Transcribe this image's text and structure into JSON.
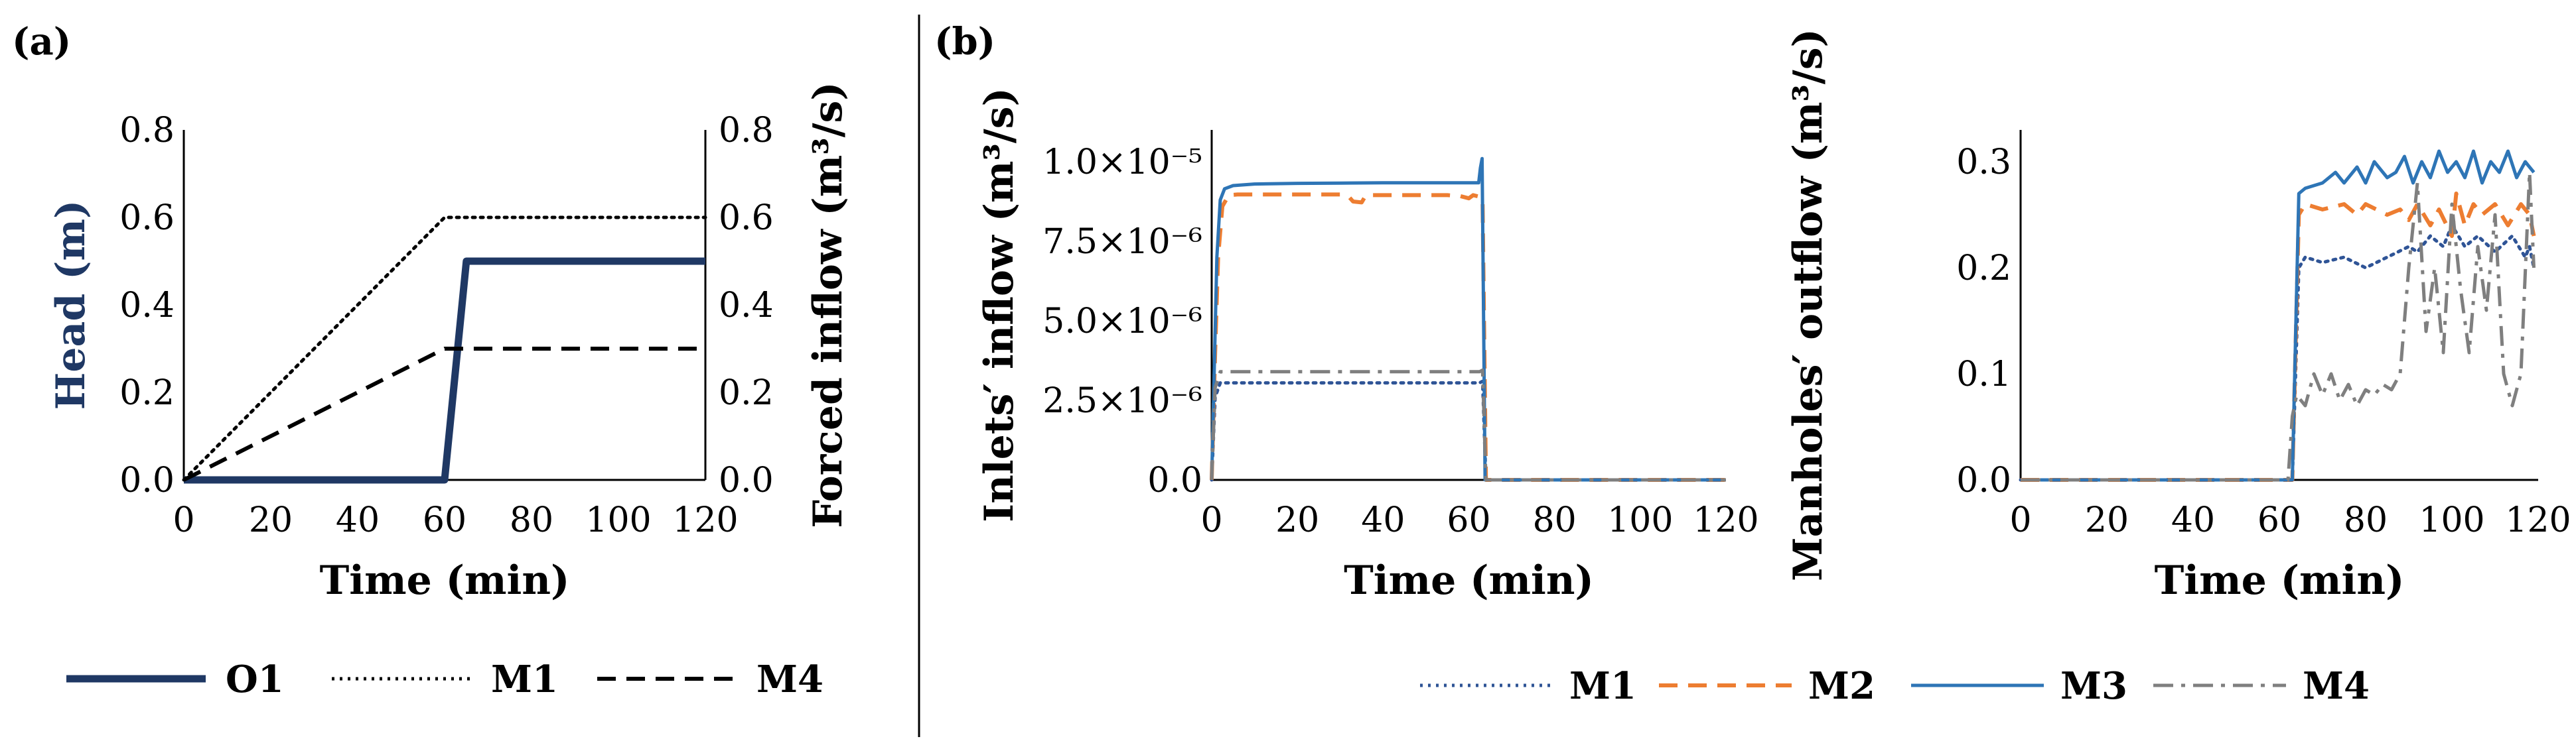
{
  "panels": {
    "a_label": "(a)",
    "b_label": "(b)"
  },
  "colors": {
    "O1": "#1F3864",
    "M1_a": "#000000",
    "M4_a": "#000000",
    "M1_b": "#2F5496",
    "M2_b": "#ED7D31",
    "M3_b": "#2E75B6",
    "M4_b": "#7F7F7F",
    "axis": "#000000"
  },
  "chart_data": [
    {
      "id": "a",
      "type": "line",
      "xlabel": "Time (min)",
      "ylabel": "Head (m)",
      "ylabel2": "Forced inflow (m³/s)",
      "xlim": [
        0,
        120
      ],
      "ylim": [
        0,
        0.8
      ],
      "ylim2": [
        0,
        0.8
      ],
      "xticks": [
        "0",
        "20",
        "40",
        "60",
        "80",
        "100",
        "120"
      ],
      "yticks": [
        "0.0",
        "0.2",
        "0.4",
        "0.6",
        "0.8"
      ],
      "yticks2": [
        "0.0",
        "0.2",
        "0.4",
        "0.6",
        "0.8"
      ],
      "series": [
        {
          "name": "O1",
          "axis": "left",
          "style": "solid-thick",
          "x": [
            0,
            60,
            65,
            120
          ],
          "y": [
            0,
            0,
            0.5,
            0.5
          ]
        },
        {
          "name": "M1",
          "axis": "right",
          "style": "dotted",
          "x": [
            0,
            60,
            120
          ],
          "y": [
            0,
            0.6,
            0.6
          ]
        },
        {
          "name": "M4",
          "axis": "right",
          "style": "dashed",
          "x": [
            0,
            60,
            120
          ],
          "y": [
            0,
            0.3,
            0.3
          ]
        }
      ],
      "legend": [
        "O1",
        "M1",
        "M4"
      ]
    },
    {
      "id": "b1",
      "type": "line",
      "xlabel": "Time (min)",
      "ylabel": "Inlets′ inflow (m³/s)",
      "xlim": [
        0,
        120
      ],
      "ylim": [
        0,
        1.1e-05
      ],
      "xticks": [
        "0",
        "20",
        "40",
        "60",
        "80",
        "100",
        "120"
      ],
      "yticks": [
        "0.0",
        "2.5×10⁻⁶",
        "5.0×10⁻⁶",
        "7.5×10⁻⁶",
        "1.0×10⁻⁵"
      ],
      "ytick_values": [
        0,
        2.5e-06,
        5e-06,
        7.5e-06,
        1e-05
      ],
      "series": [
        {
          "name": "M1",
          "style": "dotted",
          "x": [
            0,
            0.8,
            2,
            62.5,
            63.2,
            64,
            120
          ],
          "y": [
            0,
            2.6e-06,
            3.05e-06,
            3.05e-06,
            3.1e-06,
            0,
            0
          ]
        },
        {
          "name": "M2",
          "style": "dashed",
          "x": [
            0,
            0.8,
            1.5,
            2.5,
            4,
            6,
            10,
            20,
            30,
            32,
            33,
            35,
            36,
            50,
            55,
            58,
            60,
            61,
            62.5,
            63.2,
            64,
            120
          ],
          "y": [
            0,
            4e-06,
            7e-06,
            8.6e-06,
            8.95e-06,
            8.97e-06,
            8.97e-06,
            8.97e-06,
            8.97e-06,
            8.9e-06,
            8.75e-06,
            8.72e-06,
            8.95e-06,
            8.95e-06,
            8.95e-06,
            8.92e-06,
            8.85e-06,
            8.95e-06,
            8.9e-06,
            8.8e-06,
            0,
            0
          ]
        },
        {
          "name": "M3",
          "style": "solid",
          "x": [
            0,
            0.6,
            1.2,
            2,
            3,
            5,
            10,
            20,
            30,
            40,
            50,
            60,
            62.3,
            62.7,
            63.1,
            63.8,
            120
          ],
          "y": [
            0,
            3.5e-06,
            7e-06,
            8.8e-06,
            9.15e-06,
            9.25e-06,
            9.3e-06,
            9.32e-06,
            9.33e-06,
            9.34e-06,
            9.34e-06,
            9.34e-06,
            9.34e-06,
            9.8e-06,
            1.01e-05,
            0,
            0
          ]
        },
        {
          "name": "M4",
          "style": "dashdot",
          "x": [
            0,
            0.8,
            2,
            62.5,
            63.2,
            64,
            120
          ],
          "y": [
            0,
            2.9e-06,
            3.4e-06,
            3.4e-06,
            3.45e-06,
            0,
            0
          ]
        }
      ]
    },
    {
      "id": "b2",
      "type": "line",
      "xlabel": "Time (min)",
      "ylabel": "Manholes′ outflow (m³/s)",
      "xlim": [
        0,
        120
      ],
      "ylim": [
        0,
        0.33
      ],
      "xticks": [
        "0",
        "20",
        "40",
        "60",
        "80",
        "100",
        "120"
      ],
      "yticks": [
        "0.0",
        "0.1",
        "0.2",
        "0.3"
      ],
      "ytick_values": [
        0,
        0.1,
        0.2,
        0.3
      ],
      "series": [
        {
          "name": "M1",
          "style": "dotted",
          "x": [
            0,
            63,
            64.5,
            66,
            70,
            75,
            80,
            85,
            90,
            92,
            95,
            98,
            100,
            103,
            106,
            110,
            114,
            117,
            118,
            119
          ],
          "y": [
            0,
            0,
            0.2,
            0.21,
            0.205,
            0.21,
            0.2,
            0.21,
            0.22,
            0.215,
            0.23,
            0.22,
            0.24,
            0.22,
            0.23,
            0.215,
            0.23,
            0.21,
            0.22,
            0.2
          ]
        },
        {
          "name": "M2",
          "style": "dashed",
          "x": [
            0,
            63,
            64.5,
            66,
            70,
            75,
            78,
            80,
            85,
            88,
            90,
            92,
            95,
            97,
            100,
            101,
            103,
            105,
            107,
            110,
            113,
            116,
            118,
            119
          ],
          "y": [
            0,
            0,
            0.25,
            0.26,
            0.255,
            0.26,
            0.25,
            0.26,
            0.25,
            0.255,
            0.245,
            0.26,
            0.24,
            0.255,
            0.23,
            0.27,
            0.24,
            0.26,
            0.25,
            0.26,
            0.24,
            0.26,
            0.25,
            0.23
          ]
        },
        {
          "name": "M3",
          "style": "solid",
          "x": [
            0,
            63,
            64.5,
            66,
            70,
            73,
            75,
            78,
            80,
            82,
            85,
            87,
            89,
            91,
            93,
            95,
            97,
            99,
            101,
            103,
            105,
            107,
            109,
            111,
            113,
            115,
            117,
            119
          ],
          "y": [
            0,
            0,
            0.27,
            0.275,
            0.28,
            0.29,
            0.28,
            0.295,
            0.28,
            0.3,
            0.285,
            0.29,
            0.305,
            0.28,
            0.3,
            0.285,
            0.31,
            0.29,
            0.3,
            0.285,
            0.31,
            0.28,
            0.3,
            0.29,
            0.31,
            0.285,
            0.3,
            0.29
          ]
        },
        {
          "name": "M4",
          "style": "dashdot",
          "x": [
            0,
            62,
            63,
            64,
            66,
            68,
            70,
            72,
            74,
            76,
            78,
            80,
            82,
            84,
            86,
            88,
            90,
            92,
            94,
            96,
            98,
            100,
            102,
            104,
            106,
            108,
            110,
            112,
            114,
            116,
            118,
            119
          ],
          "y": [
            0,
            0,
            0.06,
            0.08,
            0.07,
            0.1,
            0.08,
            0.1,
            0.075,
            0.09,
            0.07,
            0.085,
            0.08,
            0.09,
            0.085,
            0.1,
            0.2,
            0.28,
            0.14,
            0.2,
            0.12,
            0.26,
            0.18,
            0.12,
            0.22,
            0.16,
            0.25,
            0.1,
            0.07,
            0.1,
            0.29,
            0.2
          ]
        }
      ],
      "legend": [
        "M1",
        "M2",
        "M3",
        "M4"
      ]
    }
  ]
}
